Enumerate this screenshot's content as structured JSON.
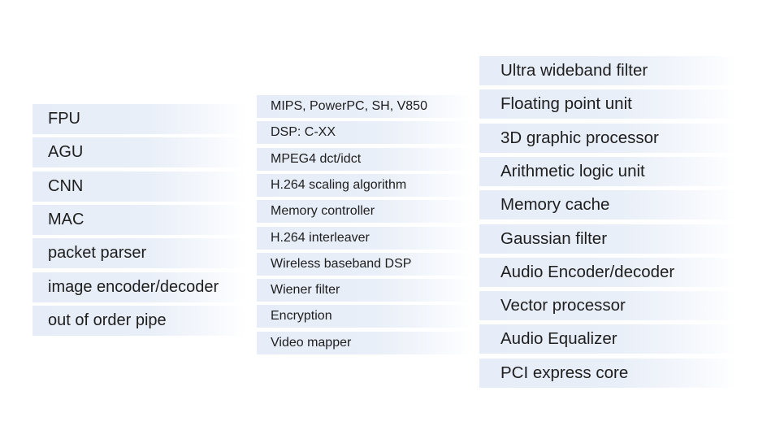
{
  "columns": [
    {
      "items": [
        "FPU",
        "AGU",
        "CNN",
        "MAC",
        "packet parser",
        "image encoder/decoder",
        "out of order pipe"
      ]
    },
    {
      "items": [
        "MIPS, PowerPC, SH, V850",
        "DSP: C-XX",
        "MPEG4 dct/idct",
        "H.264 scaling algorithm",
        "Memory controller",
        "H.264 interleaver",
        "Wireless baseband DSP",
        "Wiener filter",
        "Encryption",
        "Video mapper"
      ]
    },
    {
      "items": [
        "Ultra wideband filter",
        "Floating point unit",
        "3D graphic processor",
        "Arithmetic logic unit",
        "Memory cache",
        "Gaussian filter",
        "Audio Encoder/decoder",
        "Vector processor",
        "Audio Equalizer",
        "PCI express core"
      ]
    }
  ],
  "colors": {
    "item_background": "#e6edf8",
    "text": "#1e1e1e"
  }
}
